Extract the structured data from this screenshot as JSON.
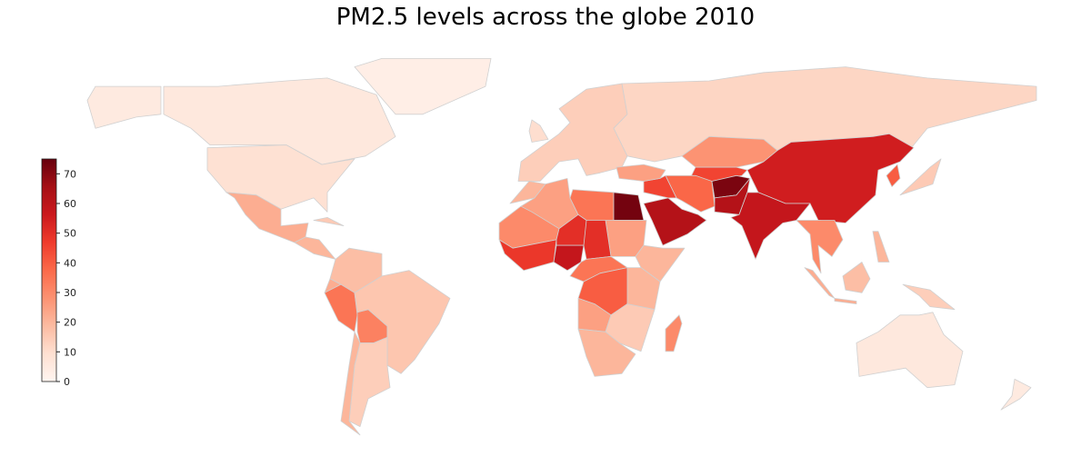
{
  "chart_data": {
    "type": "choropleth",
    "title": "PM2.5 levels across the globe 2010",
    "colormap": "Reds",
    "colorbar": {
      "min": 0,
      "max": 75,
      "ticks": [
        0,
        10,
        20,
        30,
        40,
        50,
        60,
        70
      ],
      "placement": "left"
    },
    "border_color": "#d0d0d0",
    "regions": [
      {
        "name": "Canada",
        "value": 6
      },
      {
        "name": "Alaska",
        "value": 5
      },
      {
        "name": "USA",
        "value": 9
      },
      {
        "name": "Greenland",
        "value": 3
      },
      {
        "name": "Mexico",
        "value": 22
      },
      {
        "name": "Central America",
        "value": 20
      },
      {
        "name": "Cuba",
        "value": 15
      },
      {
        "name": "Colombia-Venezuela",
        "value": 18
      },
      {
        "name": "Ecuador",
        "value": 22
      },
      {
        "name": "Peru",
        "value": 35
      },
      {
        "name": "Bolivia",
        "value": 32
      },
      {
        "name": "Brazil",
        "value": 16
      },
      {
        "name": "Argentina",
        "value": 14
      },
      {
        "name": "Chile",
        "value": 20
      },
      {
        "name": "Europe",
        "value": 14
      },
      {
        "name": "UK",
        "value": 10
      },
      {
        "name": "Russia",
        "value": 12
      },
      {
        "name": "Kazakhstan",
        "value": 28
      },
      {
        "name": "Central Asia",
        "value": 45
      },
      {
        "name": "China",
        "value": 55
      },
      {
        "name": "Korea",
        "value": 40
      },
      {
        "name": "Japan",
        "value": 15
      },
      {
        "name": "Saudi Arabia",
        "value": 62
      },
      {
        "name": "Iran",
        "value": 38
      },
      {
        "name": "Iraq-Syria",
        "value": 45
      },
      {
        "name": "Turkey",
        "value": 25
      },
      {
        "name": "Afghanistan",
        "value": 72
      },
      {
        "name": "Pakistan",
        "value": 62
      },
      {
        "name": "India",
        "value": 58
      },
      {
        "name": "Southeast Asia",
        "value": 30
      },
      {
        "name": "Australia",
        "value": 6
      },
      {
        "name": "New Zealand",
        "value": 5
      },
      {
        "name": "Morocco",
        "value": 20
      },
      {
        "name": "Algeria",
        "value": 25
      },
      {
        "name": "Libya",
        "value": 35
      },
      {
        "name": "Egypt",
        "value": 73
      },
      {
        "name": "Sudan",
        "value": 25
      },
      {
        "name": "Mauritania-Mali",
        "value": 30
      },
      {
        "name": "West Africa",
        "value": 48
      },
      {
        "name": "Niger",
        "value": 50
      },
      {
        "name": "Nigeria",
        "value": 58
      },
      {
        "name": "Chad",
        "value": 50
      },
      {
        "name": "Horn of Africa",
        "value": 20
      },
      {
        "name": "Central Africa",
        "value": 35
      },
      {
        "name": "DRC",
        "value": 40
      },
      {
        "name": "East Africa",
        "value": 20
      },
      {
        "name": "Angola",
        "value": 25
      },
      {
        "name": "Zambia-Mozambique",
        "value": 15
      },
      {
        "name": "Southern Africa",
        "value": 20
      },
      {
        "name": "Madagascar",
        "value": 30
      },
      {
        "name": "Sumatra",
        "value": 22
      },
      {
        "name": "Borneo",
        "value": 18
      },
      {
        "name": "Java",
        "value": 22
      },
      {
        "name": "New Guinea",
        "value": 14
      },
      {
        "name": "Philippines",
        "value": 20
      }
    ]
  }
}
